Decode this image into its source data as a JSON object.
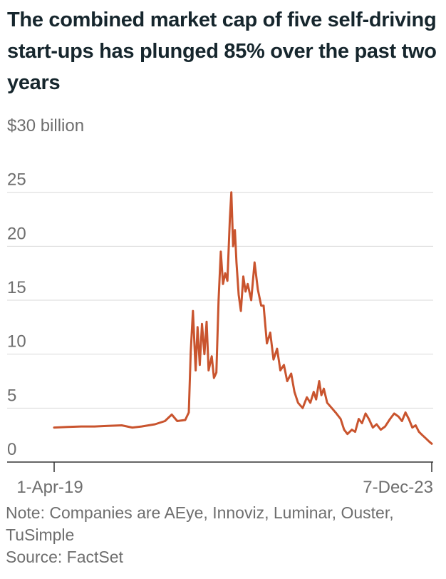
{
  "title": "The combined market cap of five self-driving start-ups has plunged 85% over the past two years",
  "note": "Note: Companies are AEye, Innoviz, Luminar, Ouster, TuSimple",
  "source": "Source: FactSet",
  "colors": {
    "line": "#c9542e",
    "grid": "#d9d9d9",
    "axis": "#333333",
    "text": "#6e6e6e",
    "title": "#16262d"
  },
  "chart_data": {
    "type": "line",
    "title": "The combined market cap of five self-driving start-ups has plunged 85% over the past two years",
    "xlabel": "",
    "ylabel": "",
    "ylim": [
      0,
      30
    ],
    "xlim": [
      "2019-04-01",
      "2023-12-07"
    ],
    "y_ticks": [
      {
        "value": 30,
        "label": "$30 billion"
      },
      {
        "value": 25,
        "label": "25"
      },
      {
        "value": 20,
        "label": "20"
      },
      {
        "value": 15,
        "label": "15"
      },
      {
        "value": 10,
        "label": "10"
      },
      {
        "value": 5,
        "label": "5"
      },
      {
        "value": 0,
        "label": "0"
      }
    ],
    "x_ticks": [
      {
        "value": "2019-04-01",
        "label": "1-Apr-19"
      },
      {
        "value": "2023-12-07",
        "label": "7-Dec-23"
      }
    ],
    "grid": true,
    "legend": "none",
    "series": [
      {
        "values": [
          [
            "2019-04-01",
            3.2
          ],
          [
            "2019-06-01",
            3.25
          ],
          [
            "2019-08-01",
            3.3
          ],
          [
            "2019-10-01",
            3.3
          ],
          [
            "2019-12-01",
            3.35
          ],
          [
            "2020-02-01",
            3.4
          ],
          [
            "2020-03-20",
            3.2
          ],
          [
            "2020-05-01",
            3.3
          ],
          [
            "2020-07-01",
            3.5
          ],
          [
            "2020-08-15",
            3.8
          ],
          [
            "2020-09-15",
            4.4
          ],
          [
            "2020-10-10",
            3.8
          ],
          [
            "2020-11-15",
            3.9
          ],
          [
            "2020-12-01",
            4.6
          ],
          [
            "2020-12-10",
            10.2
          ],
          [
            "2020-12-20",
            14.0
          ],
          [
            "2021-01-01",
            8.5
          ],
          [
            "2021-01-10",
            12.5
          ],
          [
            "2021-01-20",
            9.0
          ],
          [
            "2021-01-30",
            12.8
          ],
          [
            "2021-02-10",
            10.0
          ],
          [
            "2021-02-20",
            13.0
          ],
          [
            "2021-03-01",
            8.5
          ],
          [
            "2021-03-15",
            9.8
          ],
          [
            "2021-03-25",
            7.8
          ],
          [
            "2021-04-05",
            8.3
          ],
          [
            "2021-04-15",
            15.0
          ],
          [
            "2021-04-25",
            19.5
          ],
          [
            "2021-05-05",
            16.5
          ],
          [
            "2021-05-15",
            17.5
          ],
          [
            "2021-05-25",
            16.8
          ],
          [
            "2021-06-05",
            22.5
          ],
          [
            "2021-06-12",
            25.0
          ],
          [
            "2021-06-20",
            20.0
          ],
          [
            "2021-06-28",
            21.5
          ],
          [
            "2021-07-05",
            18.5
          ],
          [
            "2021-07-15",
            15.5
          ],
          [
            "2021-07-25",
            14.0
          ],
          [
            "2021-08-05",
            17.2
          ],
          [
            "2021-08-15",
            15.8
          ],
          [
            "2021-08-25",
            16.5
          ],
          [
            "2021-09-10",
            15.0
          ],
          [
            "2021-09-25",
            18.5
          ],
          [
            "2021-10-10",
            16.0
          ],
          [
            "2021-10-25",
            14.5
          ],
          [
            "2021-11-05",
            14.5
          ],
          [
            "2021-11-20",
            11.0
          ],
          [
            "2021-12-05",
            12.0
          ],
          [
            "2021-12-20",
            9.5
          ],
          [
            "2022-01-05",
            10.5
          ],
          [
            "2022-01-20",
            8.5
          ],
          [
            "2022-02-05",
            9.0
          ],
          [
            "2022-02-20",
            7.5
          ],
          [
            "2022-03-10",
            8.2
          ],
          [
            "2022-03-25",
            6.5
          ],
          [
            "2022-04-10",
            5.5
          ],
          [
            "2022-05-01",
            5.0
          ],
          [
            "2022-05-20",
            6.0
          ],
          [
            "2022-06-05",
            5.5
          ],
          [
            "2022-06-20",
            6.5
          ],
          [
            "2022-07-01",
            5.8
          ],
          [
            "2022-07-15",
            7.5
          ],
          [
            "2022-07-25",
            6.2
          ],
          [
            "2022-08-05",
            6.8
          ],
          [
            "2022-08-20",
            5.5
          ],
          [
            "2022-09-10",
            5.0
          ],
          [
            "2022-10-01",
            4.5
          ],
          [
            "2022-10-20",
            4.0
          ],
          [
            "2022-11-05",
            3.0
          ],
          [
            "2022-11-20",
            2.6
          ],
          [
            "2022-12-10",
            3.0
          ],
          [
            "2022-12-25",
            2.8
          ],
          [
            "2023-01-10",
            4.0
          ],
          [
            "2023-01-25",
            3.6
          ],
          [
            "2023-02-10",
            4.5
          ],
          [
            "2023-02-25",
            4.0
          ],
          [
            "2023-03-15",
            3.2
          ],
          [
            "2023-04-01",
            3.5
          ],
          [
            "2023-04-20",
            3.0
          ],
          [
            "2023-05-10",
            3.3
          ],
          [
            "2023-06-01",
            4.0
          ],
          [
            "2023-06-20",
            4.5
          ],
          [
            "2023-07-10",
            4.2
          ],
          [
            "2023-07-25",
            3.8
          ],
          [
            "2023-08-10",
            4.6
          ],
          [
            "2023-08-25",
            4.0
          ],
          [
            "2023-09-10",
            3.2
          ],
          [
            "2023-09-25",
            3.4
          ],
          [
            "2023-10-10",
            2.8
          ],
          [
            "2023-10-25",
            2.5
          ],
          [
            "2023-11-10",
            2.2
          ],
          [
            "2023-11-25",
            1.9
          ],
          [
            "2023-12-07",
            1.7
          ]
        ]
      }
    ]
  }
}
